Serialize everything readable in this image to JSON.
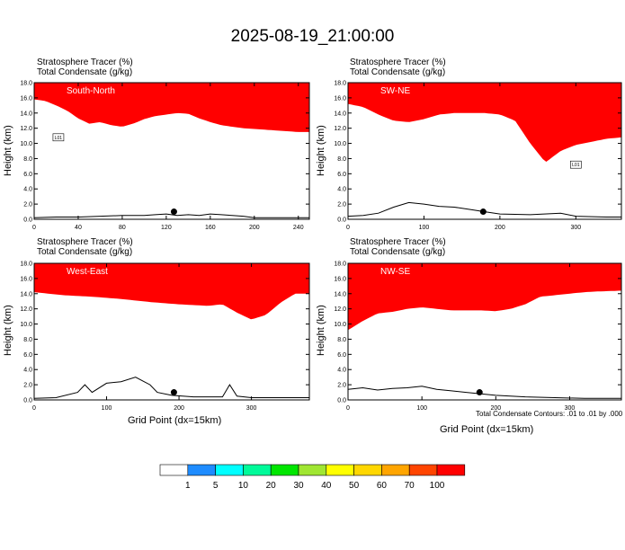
{
  "title": "2025-08-19_21:00:00",
  "panel_header": {
    "line1": "Stratosphere Tracer   (%)",
    "line2": "Total Condensate   (g/kg)"
  },
  "ylabel": "Height (km)",
  "xlabel": "Grid Point (dx=15km)",
  "contour_note": "Total Condensate Contours: .01 to .01 by .000",
  "colorbar": {
    "levels": [
      "1",
      "5",
      "10",
      "20",
      "30",
      "40",
      "50",
      "60",
      "70",
      "100"
    ],
    "colors": [
      "#ffffff",
      "#1e8cff",
      "#00ffff",
      "#00fa9a",
      "#00e600",
      "#a0e632",
      "#ffff00",
      "#ffd700",
      "#ffa500",
      "#ff4500",
      "#ff0000"
    ]
  },
  "chart_data": [
    {
      "type": "heatmap",
      "name": "South-North",
      "xlim": [
        0,
        250
      ],
      "ylim": [
        0,
        18
      ],
      "xticks": [
        0,
        40,
        80,
        120,
        160,
        200,
        240
      ],
      "yticks": [
        0,
        2,
        4,
        6,
        8,
        10,
        12,
        14,
        16,
        18
      ],
      "tropopause": [
        [
          0,
          15.8
        ],
        [
          10,
          15.6
        ],
        [
          20,
          15
        ],
        [
          30,
          14.3
        ],
        [
          40,
          13.3
        ],
        [
          50,
          12.6
        ],
        [
          60,
          12.8
        ],
        [
          70,
          12.4
        ],
        [
          80,
          12.2
        ],
        [
          90,
          12.6
        ],
        [
          100,
          13.2
        ],
        [
          110,
          13.6
        ],
        [
          120,
          13.8
        ],
        [
          130,
          14.0
        ],
        [
          140,
          13.9
        ],
        [
          150,
          13.3
        ],
        [
          160,
          12.8
        ],
        [
          170,
          12.4
        ],
        [
          180,
          12.2
        ],
        [
          190,
          12.0
        ],
        [
          200,
          11.9
        ],
        [
          210,
          11.8
        ],
        [
          220,
          11.7
        ],
        [
          230,
          11.6
        ],
        [
          240,
          11.5
        ],
        [
          250,
          11.5
        ]
      ],
      "terrain": [
        [
          0,
          0.2
        ],
        [
          20,
          0.3
        ],
        [
          40,
          0.3
        ],
        [
          60,
          0.4
        ],
        [
          80,
          0.5
        ],
        [
          100,
          0.5
        ],
        [
          110,
          0.6
        ],
        [
          120,
          0.7
        ],
        [
          130,
          0.5
        ],
        [
          140,
          0.6
        ],
        [
          150,
          0.5
        ],
        [
          160,
          0.7
        ],
        [
          170,
          0.6
        ],
        [
          180,
          0.5
        ],
        [
          190,
          0.4
        ],
        [
          200,
          0.2
        ],
        [
          220,
          0.2
        ],
        [
          250,
          0.2
        ]
      ],
      "marker": {
        "x": 127,
        "y": 1.0
      },
      "label": {
        "text": "L01",
        "x": 22,
        "y": 10.8
      }
    },
    {
      "type": "heatmap",
      "name": "SW-NE",
      "xlim": [
        0,
        360
      ],
      "ylim": [
        0,
        18
      ],
      "xticks": [
        0,
        100,
        200,
        300
      ],
      "yticks": [
        0,
        2,
        4,
        6,
        8,
        10,
        12,
        14,
        16,
        18
      ],
      "tropopause": [
        [
          0,
          15.2
        ],
        [
          20,
          14.8
        ],
        [
          40,
          13.8
        ],
        [
          60,
          13.0
        ],
        [
          80,
          12.8
        ],
        [
          100,
          13.2
        ],
        [
          120,
          13.8
        ],
        [
          140,
          14.0
        ],
        [
          160,
          14.0
        ],
        [
          180,
          14.0
        ],
        [
          200,
          13.8
        ],
        [
          220,
          13.0
        ],
        [
          240,
          10.0
        ],
        [
          260,
          7.5
        ],
        [
          280,
          9.0
        ],
        [
          300,
          9.8
        ],
        [
          320,
          10.2
        ],
        [
          340,
          10.6
        ],
        [
          360,
          10.8
        ]
      ],
      "terrain": [
        [
          0,
          0.4
        ],
        [
          20,
          0.5
        ],
        [
          40,
          0.8
        ],
        [
          60,
          1.6
        ],
        [
          80,
          2.2
        ],
        [
          100,
          2.0
        ],
        [
          120,
          1.7
        ],
        [
          140,
          1.6
        ],
        [
          160,
          1.3
        ],
        [
          180,
          1.0
        ],
        [
          200,
          0.7
        ],
        [
          240,
          0.6
        ],
        [
          280,
          0.8
        ],
        [
          300,
          0.4
        ],
        [
          340,
          0.3
        ],
        [
          360,
          0.3
        ]
      ],
      "marker": {
        "x": 178,
        "y": 1.0
      },
      "label": {
        "text": "L01",
        "x": 300,
        "y": 7.2
      }
    },
    {
      "type": "heatmap",
      "name": "West-East",
      "xlim": [
        0,
        380
      ],
      "ylim": [
        0,
        18
      ],
      "xticks": [
        0,
        100,
        200,
        300
      ],
      "yticks": [
        0,
        2,
        4,
        6,
        8,
        10,
        12,
        14,
        16,
        18
      ],
      "tropopause": [
        [
          0,
          14.2
        ],
        [
          40,
          13.8
        ],
        [
          80,
          13.6
        ],
        [
          120,
          13.3
        ],
        [
          160,
          12.9
        ],
        [
          200,
          12.6
        ],
        [
          240,
          12.4
        ],
        [
          260,
          12.6
        ],
        [
          280,
          11.5
        ],
        [
          300,
          10.6
        ],
        [
          320,
          11.2
        ],
        [
          340,
          12.8
        ],
        [
          360,
          14.0
        ],
        [
          380,
          14.0
        ]
      ],
      "terrain": [
        [
          0,
          0.2
        ],
        [
          30,
          0.3
        ],
        [
          60,
          1.0
        ],
        [
          70,
          2.0
        ],
        [
          80,
          1.0
        ],
        [
          100,
          2.2
        ],
        [
          120,
          2.4
        ],
        [
          140,
          3.0
        ],
        [
          150,
          2.5
        ],
        [
          160,
          2.0
        ],
        [
          170,
          1.0
        ],
        [
          190,
          0.6
        ],
        [
          220,
          0.4
        ],
        [
          260,
          0.4
        ],
        [
          270,
          2.0
        ],
        [
          280,
          0.5
        ],
        [
          300,
          0.3
        ],
        [
          340,
          0.3
        ],
        [
          380,
          0.3
        ]
      ],
      "marker": {
        "x": 193,
        "y": 1.0
      }
    },
    {
      "type": "heatmap",
      "name": "NW-SE",
      "xlim": [
        0,
        370
      ],
      "ylim": [
        0,
        18
      ],
      "xticks": [
        0,
        100,
        200,
        300
      ],
      "yticks": [
        0,
        2,
        4,
        6,
        8,
        10,
        12,
        14,
        16,
        18
      ],
      "tropopause": [
        [
          0,
          9.2
        ],
        [
          20,
          10.4
        ],
        [
          40,
          11.4
        ],
        [
          60,
          11.6
        ],
        [
          80,
          12.0
        ],
        [
          100,
          12.2
        ],
        [
          120,
          12.0
        ],
        [
          140,
          11.8
        ],
        [
          160,
          11.8
        ],
        [
          180,
          11.8
        ],
        [
          200,
          11.7
        ],
        [
          220,
          12.0
        ],
        [
          240,
          12.6
        ],
        [
          260,
          13.6
        ],
        [
          280,
          13.8
        ],
        [
          300,
          14.0
        ],
        [
          320,
          14.2
        ],
        [
          340,
          14.3
        ],
        [
          370,
          14.4
        ]
      ],
      "terrain": [
        [
          0,
          1.4
        ],
        [
          20,
          1.6
        ],
        [
          40,
          1.3
        ],
        [
          60,
          1.5
        ],
        [
          80,
          1.6
        ],
        [
          100,
          1.8
        ],
        [
          120,
          1.4
        ],
        [
          140,
          1.2
        ],
        [
          160,
          1.0
        ],
        [
          200,
          0.6
        ],
        [
          240,
          0.4
        ],
        [
          280,
          0.3
        ],
        [
          320,
          0.2
        ],
        [
          370,
          0.2
        ]
      ],
      "marker": {
        "x": 178,
        "y": 1.0
      }
    }
  ]
}
